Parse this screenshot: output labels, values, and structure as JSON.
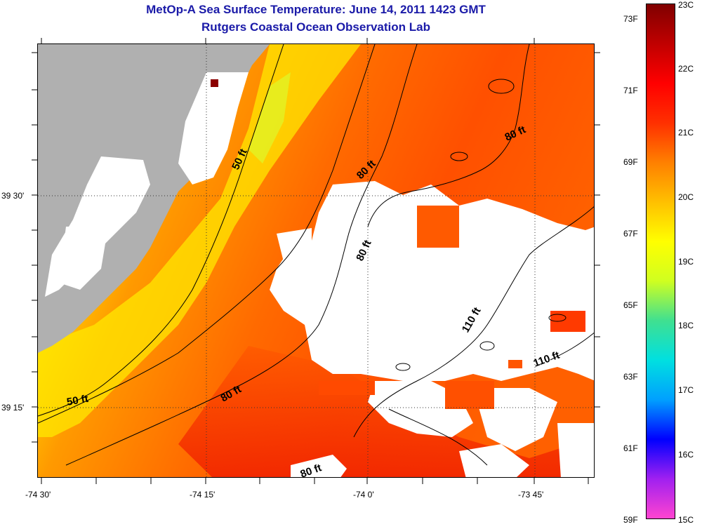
{
  "title_line1": "MetOp-A Sea Surface Temperature:  June 14, 2011 1423 GMT",
  "title_line2": "Rutgers Coastal Ocean Observation Lab",
  "y_axis_labels": [
    "39 30'",
    "39 15'"
  ],
  "x_axis_labels": [
    "-74 30'",
    "-74 15'",
    "-74 0'",
    "-73 45'"
  ],
  "contour_labels": [
    "50 ft",
    "50 ft",
    "80 ft",
    "80 ft",
    "80 ft",
    "80 ft",
    "80 ft",
    "110 ft",
    "110 ft"
  ],
  "colorbar": {
    "fahrenheit_labels": [
      "73F",
      "71F",
      "69F",
      "67F",
      "65F",
      "63F",
      "61F",
      "59F"
    ],
    "celsius_labels": [
      "23C",
      "22C",
      "21C",
      "20C",
      "19C",
      "18C",
      "17C",
      "16C",
      "15C"
    ],
    "range_c": [
      15,
      23
    ],
    "stops": [
      "#ff44d0",
      "#a020f0",
      "#0000ff",
      "#00a0ff",
      "#00e0e0",
      "#40e090",
      "#d0ff20",
      "#ffff00",
      "#ffc000",
      "#ff8000",
      "#ff3000",
      "#ff0000",
      "#c00000",
      "#800000"
    ]
  },
  "colors": {
    "land": "#b0b0b0",
    "cloud": "#ffffff",
    "contour": "#000000",
    "title": "#1a1aa8",
    "station": "#8b0000"
  }
}
